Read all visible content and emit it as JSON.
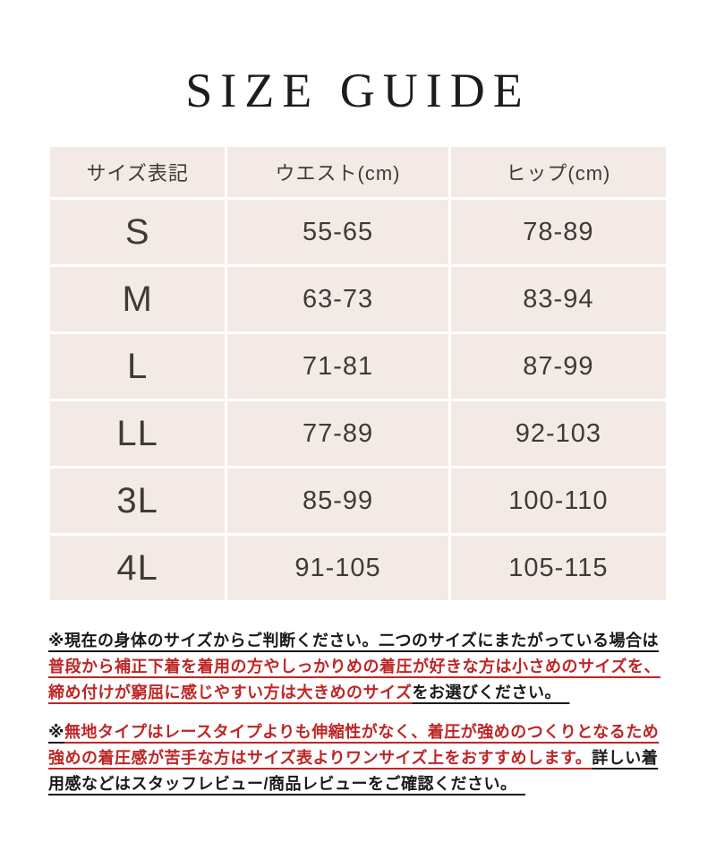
{
  "title": "SIZE GUIDE",
  "table": {
    "headers": [
      "サイズ表記",
      "ウエスト(cm)",
      "ヒップ(cm)"
    ],
    "rows": [
      {
        "size": "S",
        "waist": "55-65",
        "hip": "78-89"
      },
      {
        "size": "M",
        "waist": "63-73",
        "hip": "83-94"
      },
      {
        "size": "L",
        "waist": "71-81",
        "hip": "87-99"
      },
      {
        "size": "LL",
        "waist": "77-89",
        "hip": "92-103"
      },
      {
        "size": "3L",
        "waist": "85-99",
        "hip": "100-110"
      },
      {
        "size": "4L",
        "waist": "91-105",
        "hip": "105-115"
      }
    ]
  },
  "notes": [
    {
      "segments": [
        {
          "color": "black",
          "text": "※現在の身体のサイズからご判断ください。二つのサイズにまたがっている場合は"
        },
        {
          "color": "red",
          "text": "普段から補正下着を着用の方やしっかりめの着圧が好きな方は小さめのサイズを、締め付けが窮屈に感じやすい方は大きめのサイズ"
        },
        {
          "color": "black",
          "text": "をお選びください。　"
        }
      ]
    },
    {
      "segments": [
        {
          "color": "black",
          "text": "※"
        },
        {
          "color": "red",
          "text": "無地タイプはレースタイプよりも伸縮性がなく、着圧が強めのつくりとなるため強めの着圧感が苦手な方はサイズ表よりワンサイズ上をおすすめします。"
        },
        {
          "color": "black",
          "text": "詳しい着用感などはスタッフレビュー/商品レビューをご確認ください。　"
        }
      ]
    }
  ],
  "colors": {
    "accent_red": "#bf2626",
    "cell_background": "#f3eae6",
    "divider": "#ffffff",
    "table_text": "#3e3a37",
    "body_text": "#1a1a1a"
  }
}
